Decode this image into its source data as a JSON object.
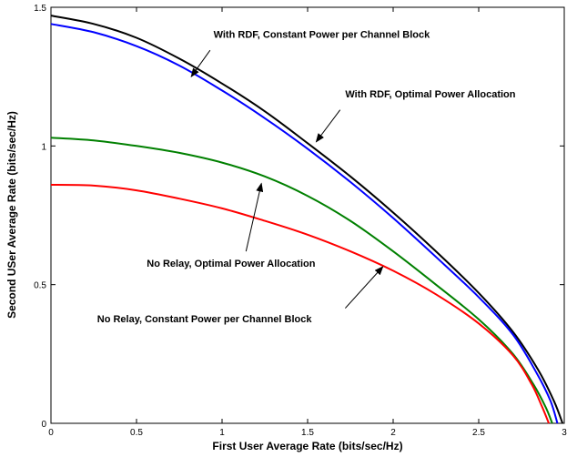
{
  "chart_data": {
    "type": "line",
    "title": "",
    "xlabel": "First User Average Rate (bits/sec/Hz)",
    "ylabel": "Second USer Average Rate (bits/sec/Hz)",
    "xlim": [
      0,
      3
    ],
    "ylim": [
      0,
      1.5
    ],
    "xticks": [
      "0",
      "0.5",
      "1",
      "1.5",
      "2",
      "2.5",
      "3"
    ],
    "yticks": [
      "0",
      "0.5",
      "1",
      "1.5"
    ],
    "grid": false,
    "legend": "none",
    "series": [
      {
        "color": "#000000",
        "x": [
          0,
          0.25,
          0.5,
          0.75,
          1.0,
          1.25,
          1.5,
          1.75,
          2.0,
          2.25,
          2.5,
          2.7,
          2.85,
          2.94,
          2.99
        ],
        "y": [
          1.47,
          1.44,
          1.39,
          1.315,
          1.225,
          1.125,
          1.01,
          0.89,
          0.76,
          0.62,
          0.47,
          0.33,
          0.19,
          0.08,
          0.0
        ]
      },
      {
        "color": "#0000ff",
        "x": [
          0,
          0.25,
          0.5,
          0.75,
          1.0,
          1.25,
          1.5,
          1.75,
          2.0,
          2.25,
          2.5,
          2.7,
          2.84,
          2.92,
          2.96
        ],
        "y": [
          1.44,
          1.41,
          1.36,
          1.29,
          1.2,
          1.1,
          0.99,
          0.87,
          0.74,
          0.6,
          0.455,
          0.32,
          0.18,
          0.08,
          0.0
        ]
      },
      {
        "color": "#008000",
        "x": [
          0,
          0.25,
          0.5,
          0.75,
          1.0,
          1.25,
          1.5,
          1.75,
          2.0,
          2.25,
          2.5,
          2.7,
          2.82,
          2.89,
          2.93
        ],
        "y": [
          1.03,
          1.02,
          1.0,
          0.975,
          0.94,
          0.89,
          0.82,
          0.73,
          0.62,
          0.5,
          0.375,
          0.25,
          0.14,
          0.06,
          0.0
        ]
      },
      {
        "color": "#ff0000",
        "x": [
          0,
          0.25,
          0.5,
          0.75,
          1.0,
          1.25,
          1.5,
          1.75,
          2.0,
          2.25,
          2.5,
          2.7,
          2.81,
          2.87,
          2.91
        ],
        "y": [
          0.86,
          0.857,
          0.84,
          0.81,
          0.775,
          0.73,
          0.68,
          0.62,
          0.55,
          0.465,
          0.36,
          0.245,
          0.14,
          0.06,
          0.0
        ]
      }
    ],
    "annotations": [
      {
        "text": "With RDF, Constant Power per Channel Block",
        "text_x": 0.95,
        "text_y": 1.39,
        "anchor": "start",
        "arrow_from": [
          0.93,
          1.345
        ],
        "arrow_to": [
          0.82,
          1.25
        ]
      },
      {
        "text": "With RDF, Optimal Power Allocation",
        "text_x": 1.72,
        "text_y": 1.175,
        "anchor": "start",
        "arrow_from": [
          1.69,
          1.13
        ],
        "arrow_to": [
          1.55,
          1.015
        ]
      },
      {
        "text": "No Relay, Optimal Power Allocation",
        "text_x": 0.56,
        "text_y": 0.565,
        "anchor": "start",
        "arrow_from": [
          1.14,
          0.62
        ],
        "arrow_to": [
          1.23,
          0.865
        ]
      },
      {
        "text": "No Relay, Constant Power per Channel Block",
        "text_x": 0.27,
        "text_y": 0.365,
        "anchor": "start",
        "arrow_from": [
          1.72,
          0.415
        ],
        "arrow_to": [
          1.94,
          0.565
        ]
      }
    ]
  }
}
